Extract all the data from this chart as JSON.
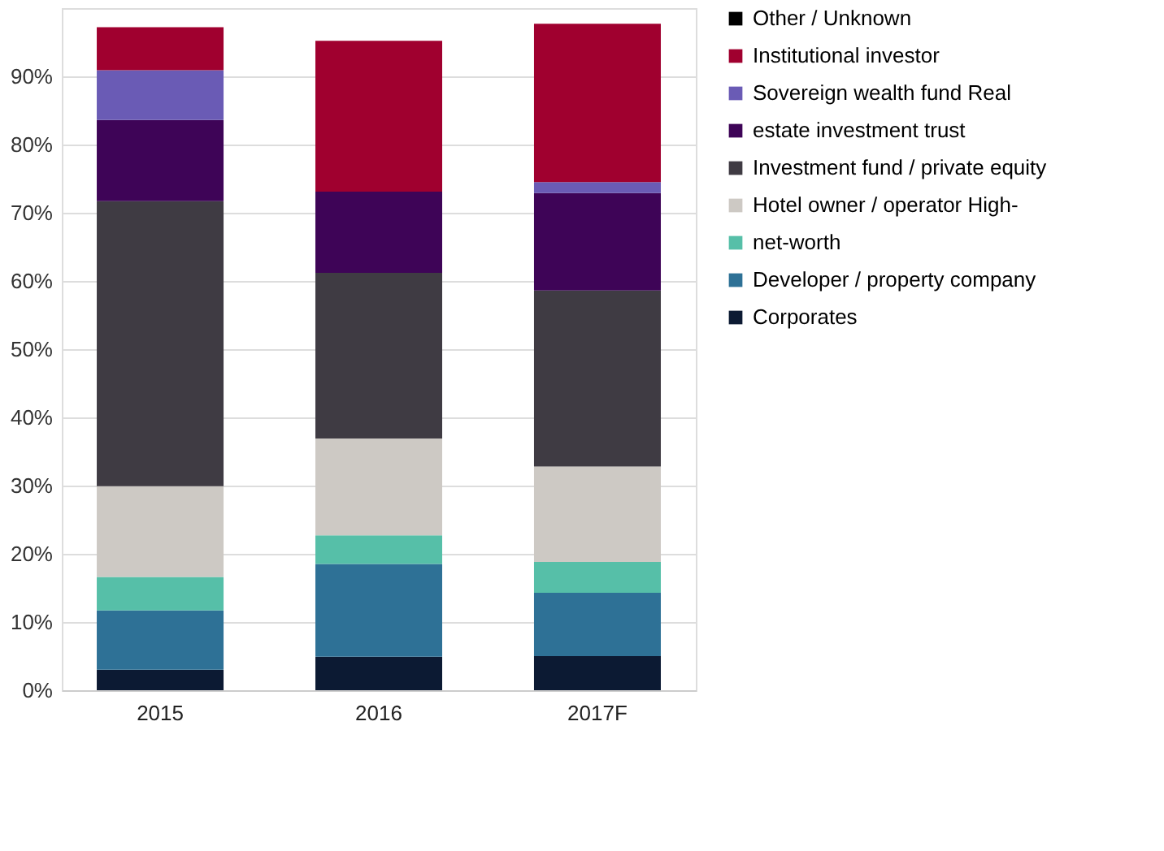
{
  "chart_data": {
    "type": "bar",
    "stacked": true,
    "categories": [
      "2015",
      "2016",
      "2017F"
    ],
    "series": [
      {
        "name": "Corporates",
        "color": "#0c1a33",
        "values": [
          3.0,
          4.9,
          5.0
        ]
      },
      {
        "name": "Developer / property company",
        "color": "#2e7196",
        "values": [
          8.7,
          13.6,
          9.3
        ]
      },
      {
        "name": "net-worth",
        "color": "#56bfa8",
        "values": [
          4.9,
          4.2,
          4.5
        ]
      },
      {
        "name": "Hotel owner / operator High-",
        "color": "#cdc9c4",
        "values": [
          13.3,
          14.2,
          14.0
        ]
      },
      {
        "name": "Investment fund / private equity",
        "color": "#3f3b43",
        "values": [
          41.8,
          24.3,
          25.8
        ]
      },
      {
        "name": "estate investment trust",
        "color": "#3e0457",
        "values": [
          11.9,
          11.9,
          14.3
        ]
      },
      {
        "name": "Sovereign wealth fund Real",
        "color": "#6a5bb5",
        "values": [
          7.3,
          0,
          1.6
        ]
      },
      {
        "name": "Institutional investor",
        "color": "#a0002f",
        "values": [
          6.3,
          22.1,
          23.2
        ]
      },
      {
        "name": "Other / Unknown",
        "color": "#000000",
        "values": [
          0,
          0,
          0
        ]
      }
    ],
    "ylim": [
      0,
      100
    ],
    "yticks": [
      {
        "value": 0,
        "label": "0%"
      },
      {
        "value": 10,
        "label": "10%"
      },
      {
        "value": 20,
        "label": "20%"
      },
      {
        "value": 30,
        "label": "30%"
      },
      {
        "value": 40,
        "label": "40%"
      },
      {
        "value": 50,
        "label": "50%"
      },
      {
        "value": 60,
        "label": "60%"
      },
      {
        "value": 70,
        "label": "70%"
      },
      {
        "value": 80,
        "label": "80%"
      },
      {
        "value": 90,
        "label": "90%"
      },
      {
        "value": 100,
        "label": null
      }
    ],
    "grid": "y",
    "legend": "right"
  }
}
